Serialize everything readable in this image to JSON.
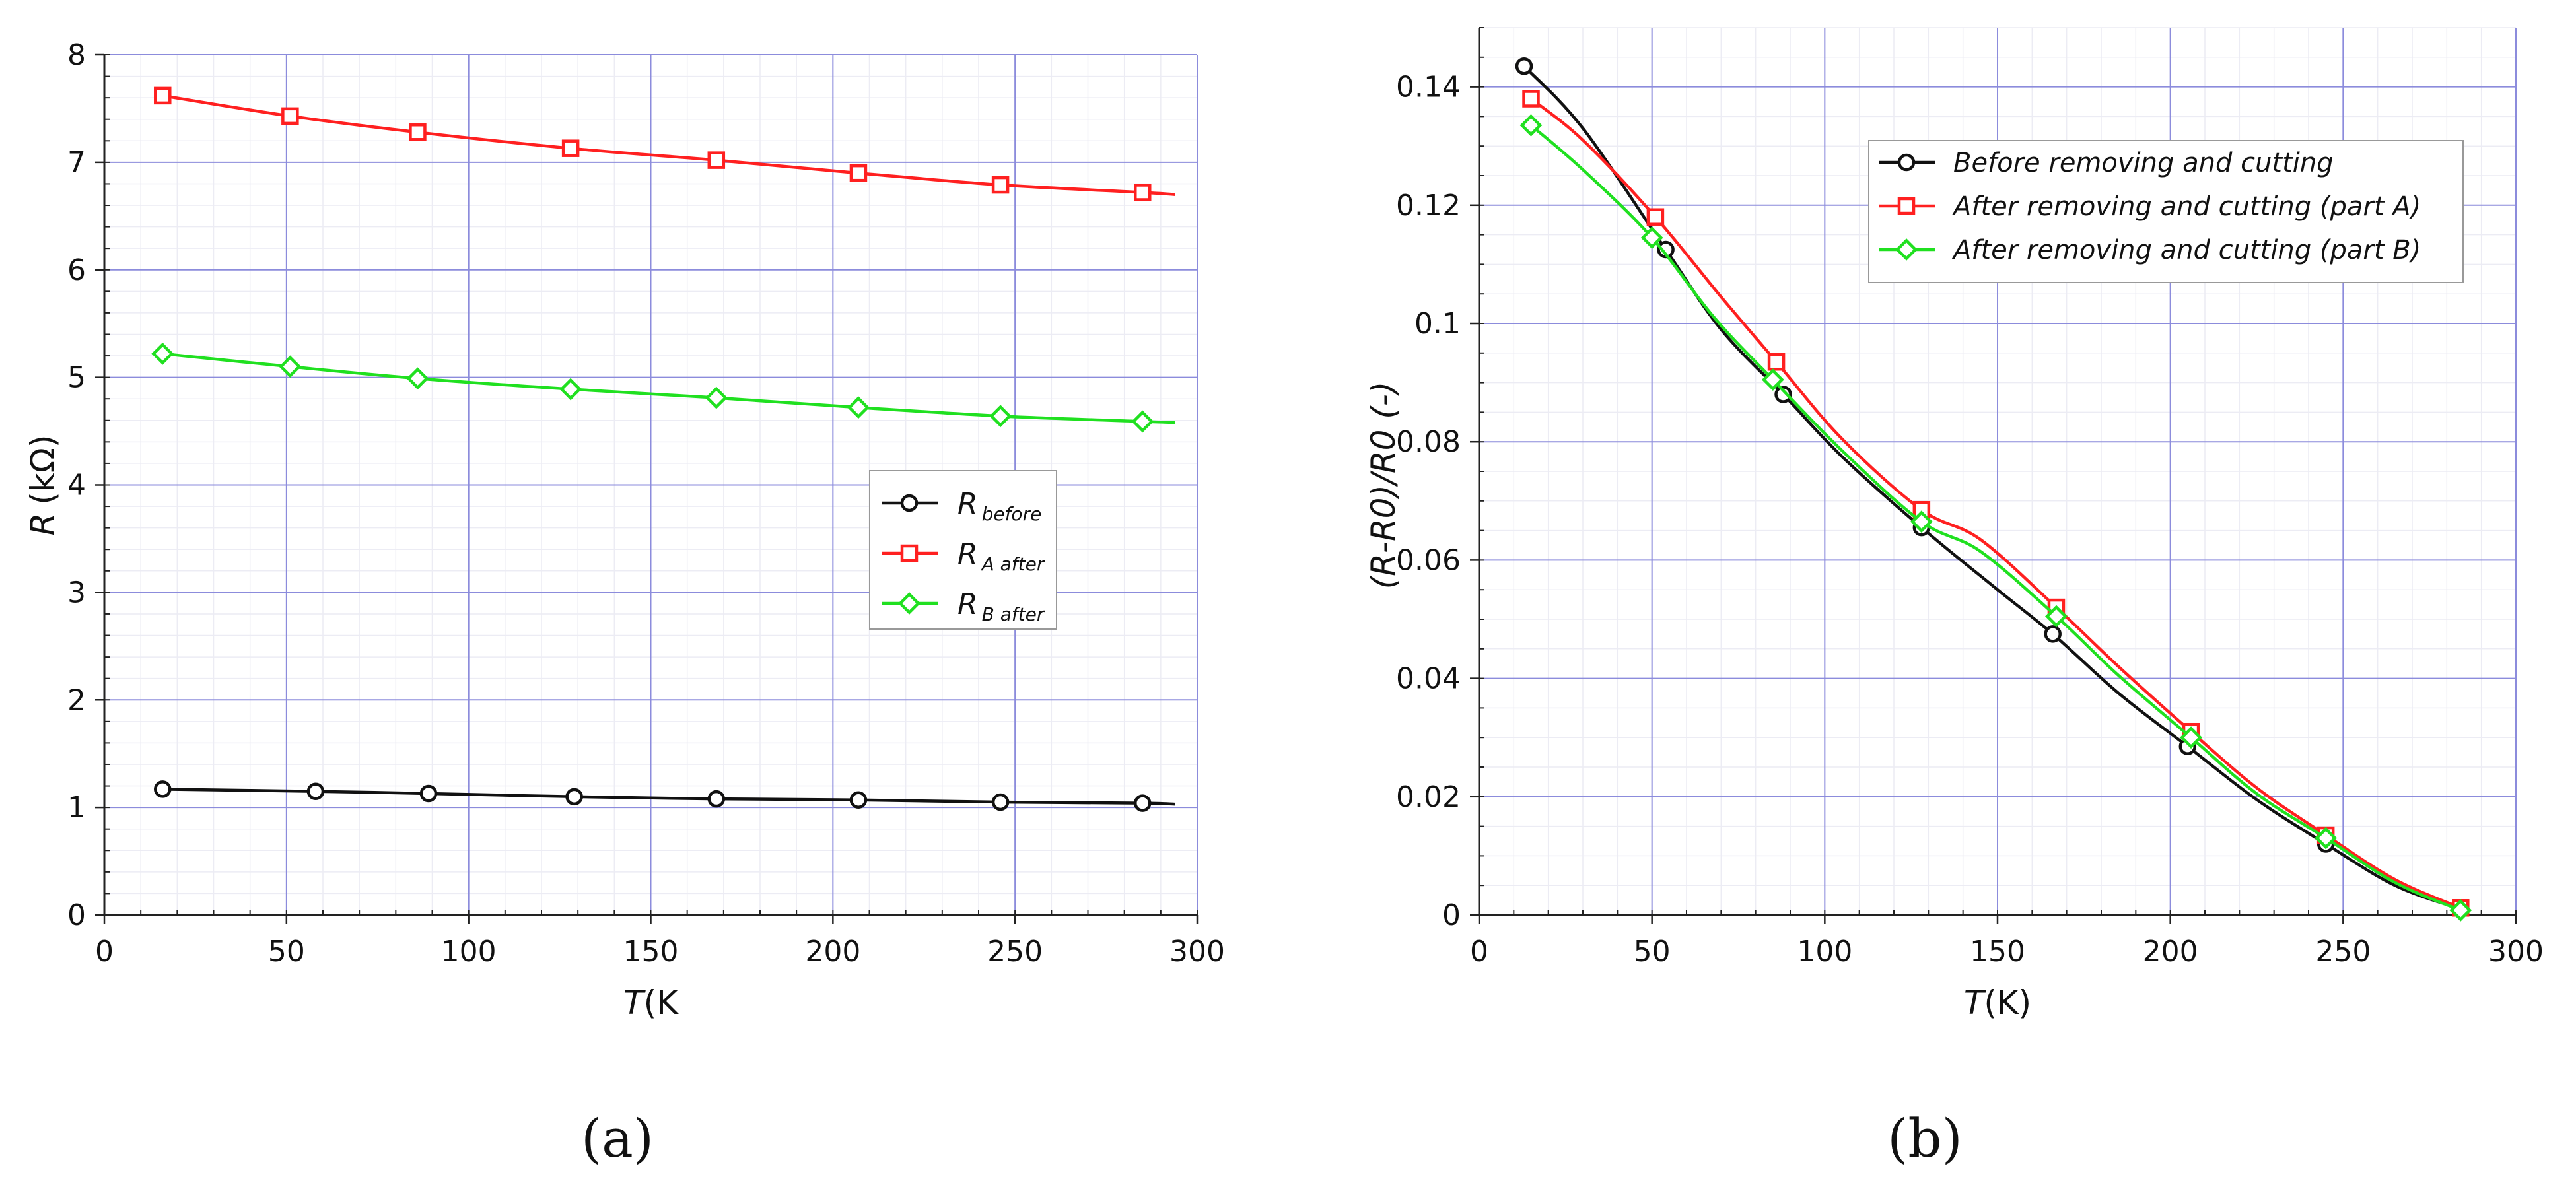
{
  "chart_data": [
    {
      "type": "line",
      "panel_label": "(a)",
      "xlabel": {
        "var": "T",
        "unit": "(K"
      },
      "ylabel": {
        "var": "R",
        "unit": "(kΩ)"
      },
      "xlim": [
        0,
        300
      ],
      "ylim": [
        0,
        8
      ],
      "xticks": [
        "0",
        "50",
        "100",
        "150",
        "200",
        "250",
        "300"
      ],
      "yticks": [
        "0",
        "1",
        "2",
        "3",
        "4",
        "5",
        "6",
        "7",
        "8"
      ],
      "grid": true,
      "legend_position": "right-middle",
      "series": [
        {
          "label_main": "R",
          "label_sub": "before",
          "color": "#111111",
          "marker": "circle",
          "x": [
            16,
            58,
            89,
            129,
            168,
            207,
            246,
            285
          ],
          "y": [
            1.17,
            1.15,
            1.13,
            1.1,
            1.08,
            1.07,
            1.05,
            1.04
          ],
          "curve_end": [
            294,
            1.03
          ]
        },
        {
          "label_main": "R",
          "label_sub": "A after",
          "color": "#ff2020",
          "marker": "square",
          "x": [
            16,
            51,
            86,
            128,
            168,
            207,
            246,
            285
          ],
          "y": [
            7.62,
            7.43,
            7.28,
            7.13,
            7.02,
            6.9,
            6.79,
            6.72
          ],
          "curve_end": [
            294,
            6.7
          ]
        },
        {
          "label_main": "R",
          "label_sub": "B after",
          "color": "#20e020",
          "marker": "diamond",
          "x": [
            16,
            51,
            86,
            128,
            168,
            207,
            246,
            285
          ],
          "y": [
            5.22,
            5.1,
            4.99,
            4.89,
            4.81,
            4.72,
            4.64,
            4.59
          ],
          "curve_end": [
            294,
            4.58
          ]
        }
      ]
    },
    {
      "type": "line",
      "panel_label": "(b)",
      "xlabel": {
        "var": "T",
        "unit": "(K)"
      },
      "ylabel": {
        "text": "(R-R0)/R0 (-)"
      },
      "xlim": [
        0,
        300
      ],
      "ylim": [
        0,
        0.15
      ],
      "xticks": [
        "0",
        "50",
        "100",
        "150",
        "200",
        "250",
        "300"
      ],
      "yticks": [
        "0",
        "0.02",
        "0.04",
        "0.06",
        "0.08",
        "0.1",
        "0.12",
        "0.14"
      ],
      "grid": true,
      "legend_position": "top-right",
      "series": [
        {
          "name": "Before removing and cutting",
          "color": "#111111",
          "marker": "circle",
          "x": [
            13,
            54,
            88,
            128,
            166,
            205,
            245,
            284
          ],
          "y": [
            0.1435,
            0.1125,
            0.088,
            0.0655,
            0.0475,
            0.0285,
            0.012,
            0.001
          ],
          "curve": [
            [
              13,
              0.1435
            ],
            [
              30,
              0.133
            ],
            [
              54,
              0.1125
            ],
            [
              70,
              0.099
            ],
            [
              88,
              0.088
            ],
            [
              105,
              0.0775
            ],
            [
              128,
              0.0655
            ],
            [
              150,
              0.055
            ],
            [
              166,
              0.0475
            ],
            [
              185,
              0.0375
            ],
            [
              205,
              0.0285
            ],
            [
              225,
              0.0195
            ],
            [
              245,
              0.012
            ],
            [
              265,
              0.005
            ],
            [
              284,
              0.001
            ]
          ]
        },
        {
          "name": "After removing and cutting (part A)",
          "color": "#ff2020",
          "marker": "square",
          "x": [
            15,
            51,
            86,
            128,
            167,
            206,
            245,
            284
          ],
          "y": [
            0.138,
            0.118,
            0.0935,
            0.0685,
            0.052,
            0.031,
            0.0135,
            0.0012
          ],
          "curve": [
            [
              15,
              0.138
            ],
            [
              30,
              0.131
            ],
            [
              51,
              0.118
            ],
            [
              70,
              0.1045
            ],
            [
              86,
              0.0935
            ],
            [
              105,
              0.0805
            ],
            [
              128,
              0.0685
            ],
            [
              145,
              0.0635
            ],
            [
              167,
              0.052
            ],
            [
              185,
              0.042
            ],
            [
              206,
              0.031
            ],
            [
              225,
              0.0215
            ],
            [
              245,
              0.0135
            ],
            [
              265,
              0.006
            ],
            [
              284,
              0.0012
            ]
          ]
        },
        {
          "name": "After removing and cutting (part B)",
          "color": "#20e020",
          "marker": "diamond",
          "x": [
            15,
            50,
            85,
            128,
            167,
            206,
            245,
            284
          ],
          "y": [
            0.1335,
            0.1145,
            0.0905,
            0.0665,
            0.0505,
            0.03,
            0.013,
            0.0008
          ],
          "curve": [
            [
              15,
              0.1335
            ],
            [
              30,
              0.126
            ],
            [
              50,
              0.1145
            ],
            [
              68,
              0.101
            ],
            [
              85,
              0.0905
            ],
            [
              105,
              0.0785
            ],
            [
              128,
              0.0665
            ],
            [
              145,
              0.0615
            ],
            [
              167,
              0.0505
            ],
            [
              185,
              0.0405
            ],
            [
              206,
              0.03
            ],
            [
              225,
              0.0205
            ],
            [
              245,
              0.013
            ],
            [
              265,
              0.0055
            ],
            [
              284,
              0.0008
            ]
          ]
        }
      ]
    }
  ]
}
